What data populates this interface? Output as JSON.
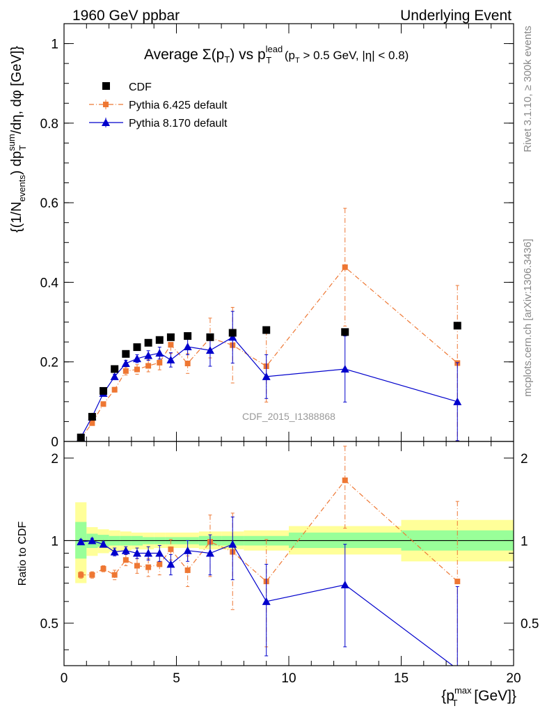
{
  "header": {
    "left": "1960 GeV ppbar",
    "right": "Underlying Event"
  },
  "side_text": {
    "rivet": "Rivet 3.1.10, ≥ 300k events",
    "mcplots": "mcplots.cern.ch [arXiv:1306.3436]"
  },
  "watermark": "CDF_2015_I1388868",
  "colors": {
    "cdf": "#000000",
    "pythia6": "#ee7733",
    "pythia8": "#0000cc",
    "band_green": "#99ff99",
    "band_yellow": "#ffff99"
  },
  "chart_data": [
    {
      "type": "scatter",
      "panel": "main",
      "title": {
        "prefix": "Average ",
        "sigma": "Σ(p",
        "t_sub": "T",
        "mid": ") vs p",
        "lead_sup": "lead",
        "t_sub2": "T",
        "cond_open": " (p",
        "t_sub3": "T",
        "cond_rest": " > 0.5 GeV, |η| < 0.8)"
      },
      "ylabel": {
        "p1": "{(1/N",
        "sub1": "events",
        "p2": ") dp",
        "sup1": "sum",
        "sub2": "T",
        "p3": "/dη, dφ [GeV]}"
      },
      "xlim": [
        0,
        20
      ],
      "ylim": [
        0,
        1.05
      ],
      "yticks": [
        0,
        0.2,
        0.4,
        0.6,
        0.8,
        1
      ],
      "ytick_labels": [
        "0",
        "0.2",
        "0.4",
        "0.6",
        "0.8",
        "1"
      ],
      "legend": [
        "CDF",
        "Pythia 6.425 default",
        "Pythia 8.170 default"
      ],
      "legend_position": "top-left",
      "series": [
        {
          "name": "CDF",
          "marker": "square",
          "x": [
            0.75,
            1.25,
            1.75,
            2.25,
            2.75,
            3.25,
            3.75,
            4.25,
            4.75,
            5.5,
            6.5,
            7.5,
            9.0,
            12.5,
            17.5
          ],
          "y": [
            0.01,
            0.062,
            0.127,
            0.182,
            0.22,
            0.237,
            0.248,
            0.255,
            0.262,
            0.265,
            0.262,
            0.273,
            0.28,
            0.275,
            0.291
          ],
          "yerr": [
            0.001,
            0.002,
            0.003,
            0.003,
            0.004,
            0.004,
            0.004,
            0.004,
            0.004,
            0.005,
            0.005,
            0.006,
            0.007,
            0.008,
            0.008
          ]
        },
        {
          "name": "Pythia 6.425 default",
          "marker": "square-small",
          "line": "dashdot",
          "x": [
            0.75,
            1.25,
            1.75,
            2.25,
            2.75,
            3.25,
            3.75,
            4.25,
            4.75,
            5.5,
            6.5,
            7.5,
            9.0,
            12.5,
            17.5
          ],
          "y": [
            0.008,
            0.046,
            0.094,
            0.13,
            0.177,
            0.181,
            0.19,
            0.198,
            0.243,
            0.196,
            0.26,
            0.242,
            0.189,
            0.438,
            0.197
          ],
          "yerr": [
            0.002,
            0.004,
            0.005,
            0.006,
            0.01,
            0.012,
            0.015,
            0.018,
            0.022,
            0.025,
            0.05,
            0.095,
            0.09,
            0.148,
            0.195
          ]
        },
        {
          "name": "Pythia 8.170 default",
          "marker": "triangle",
          "line": "solid",
          "x": [
            0.75,
            1.25,
            1.75,
            2.25,
            2.75,
            3.25,
            3.75,
            4.25,
            4.75,
            5.5,
            6.5,
            7.5,
            9.0,
            12.5,
            17.5
          ],
          "y": [
            0.01,
            0.062,
            0.121,
            0.163,
            0.196,
            0.208,
            0.216,
            0.222,
            0.205,
            0.238,
            0.229,
            0.262,
            0.163,
            0.182,
            0.1
          ],
          "yerr": [
            0.002,
            0.004,
            0.005,
            0.006,
            0.008,
            0.01,
            0.012,
            0.015,
            0.018,
            0.02,
            0.04,
            0.065,
            0.055,
            0.083,
            0.098
          ]
        }
      ]
    },
    {
      "type": "scatter",
      "panel": "ratio",
      "ylabel": "Ratio to CDF",
      "xlabel": {
        "p1": "{p",
        "sup": "max",
        "sub": "T",
        "p2": " [GeV]}"
      },
      "xlim": [
        0,
        20
      ],
      "ylim": [
        0.35,
        2.3
      ],
      "xticks": [
        0,
        5,
        10,
        15,
        20
      ],
      "xtick_labels": [
        "0",
        "5",
        "10",
        "15",
        "20"
      ],
      "yticks": [
        0.5,
        1,
        2
      ],
      "ytick_labels": [
        "0.5",
        "1",
        "2"
      ],
      "bands": {
        "x_edges": [
          0.5,
          1.0,
          1.5,
          2.0,
          2.5,
          3.0,
          3.5,
          4.0,
          4.5,
          5.0,
          6.0,
          7.0,
          8.0,
          10.0,
          15.0,
          20.0
        ],
        "green_lo": [
          0.86,
          0.94,
          0.95,
          0.96,
          0.96,
          0.96,
          0.97,
          0.97,
          0.97,
          0.97,
          0.96,
          0.96,
          0.96,
          0.94,
          0.92
        ],
        "green_hi": [
          1.17,
          1.06,
          1.05,
          1.04,
          1.04,
          1.04,
          1.03,
          1.03,
          1.03,
          1.03,
          1.04,
          1.04,
          1.04,
          1.07,
          1.09
        ],
        "yellow_lo": [
          0.7,
          0.88,
          0.9,
          0.91,
          0.92,
          0.93,
          0.93,
          0.94,
          0.94,
          0.94,
          0.93,
          0.93,
          0.92,
          0.89,
          0.84
        ],
        "yellow_hi": [
          1.38,
          1.12,
          1.1,
          1.09,
          1.08,
          1.07,
          1.07,
          1.07,
          1.07,
          1.07,
          1.08,
          1.08,
          1.09,
          1.13,
          1.19
        ]
      },
      "series": [
        {
          "name": "Pythia 6.425 default",
          "x": [
            0.75,
            1.25,
            1.75,
            2.25,
            2.75,
            3.25,
            3.75,
            4.25,
            4.75,
            5.5,
            6.5,
            7.5,
            9.0,
            12.5,
            17.5
          ],
          "y": [
            0.75,
            0.75,
            0.79,
            0.75,
            0.85,
            0.81,
            0.8,
            0.82,
            0.93,
            0.78,
            0.99,
            0.91,
            0.71,
            1.66,
            0.71
          ],
          "yerr": [
            0.02,
            0.02,
            0.02,
            0.03,
            0.04,
            0.05,
            0.06,
            0.07,
            0.08,
            0.1,
            0.25,
            0.35,
            0.3,
            0.55,
            0.68
          ]
        },
        {
          "name": "Pythia 8.170 default",
          "x": [
            0.75,
            1.25,
            1.75,
            2.25,
            2.75,
            3.25,
            3.75,
            4.25,
            4.75,
            5.5,
            6.5,
            7.5,
            9.0,
            12.5,
            17.5
          ],
          "y": [
            0.99,
            1.0,
            0.97,
            0.91,
            0.92,
            0.9,
            0.9,
            0.9,
            0.82,
            0.92,
            0.9,
            0.97,
            0.6,
            0.69,
            0.34
          ],
          "yerr": [
            0.02,
            0.02,
            0.02,
            0.03,
            0.03,
            0.04,
            0.05,
            0.06,
            0.07,
            0.08,
            0.15,
            0.25,
            0.22,
            0.28,
            0.34
          ]
        }
      ]
    }
  ]
}
